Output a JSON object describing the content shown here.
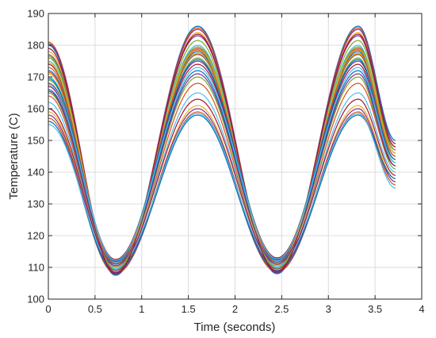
{
  "chart_data": {
    "type": "line",
    "xlabel": "Time (seconds)",
    "ylabel": "Temperature (C)",
    "xlim": [
      0,
      4
    ],
    "ylim": [
      100,
      190
    ],
    "xticks": [
      0,
      0.5,
      1,
      1.5,
      2,
      2.5,
      3,
      3.5,
      4
    ],
    "xtick_labels": [
      "0",
      "0.5",
      "1",
      "1.5",
      "2",
      "2.5",
      "3",
      "3.5",
      "4"
    ],
    "yticks": [
      100,
      110,
      120,
      130,
      140,
      150,
      160,
      170,
      180,
      190
    ],
    "ytick_labels": [
      "100",
      "110",
      "120",
      "130",
      "140",
      "150",
      "160",
      "170",
      "180",
      "190"
    ],
    "grid": true,
    "x_range": [
      0,
      3.72
    ],
    "troughs_x": [
      0.72,
      2.45
    ],
    "peaks_x": [
      1.6,
      3.32
    ],
    "series": [
      {
        "values": {
          "start": 180,
          "trough": 107.5,
          "peak": 186,
          "end": 150
        },
        "color": "#0072BD"
      },
      {
        "values": {
          "start": 181,
          "trough": 108,
          "peak": 185.5,
          "end": 149
        },
        "color": "#D95319"
      },
      {
        "values": {
          "start": 178,
          "trough": 108.5,
          "peak": 184,
          "end": 148
        },
        "color": "#EDB120"
      },
      {
        "values": {
          "start": 177,
          "trough": 109,
          "peak": 183,
          "end": 147
        },
        "color": "#7E2F8E"
      },
      {
        "values": {
          "start": 176,
          "trough": 109.5,
          "peak": 181.5,
          "end": 148
        },
        "color": "#77AC30"
      },
      {
        "values": {
          "start": 175,
          "trough": 110,
          "peak": 180,
          "end": 146
        },
        "color": "#4DBEEE"
      },
      {
        "values": {
          "start": 174,
          "trough": 110,
          "peak": 179,
          "end": 147
        },
        "color": "#A2142F"
      },
      {
        "values": {
          "start": 173,
          "trough": 110.5,
          "peak": 178.5,
          "end": 145
        },
        "color": "#D95319"
      },
      {
        "values": {
          "start": 172,
          "trough": 111,
          "peak": 178,
          "end": 146
        },
        "color": "#0072BD"
      },
      {
        "values": {
          "start": 171,
          "trough": 111,
          "peak": 177.5,
          "end": 144
        },
        "color": "#EDB120"
      },
      {
        "values": {
          "start": 170,
          "trough": 111.5,
          "peak": 177,
          "end": 145
        },
        "color": "#4DBEEE"
      },
      {
        "values": {
          "start": 169,
          "trough": 112,
          "peak": 176,
          "end": 143
        },
        "color": "#77AC30"
      },
      {
        "values": {
          "start": 168,
          "trough": 112,
          "peak": 175,
          "end": 144
        },
        "color": "#7E2F8E"
      },
      {
        "values": {
          "start": 167,
          "trough": 112.5,
          "peak": 174,
          "end": 142
        },
        "color": "#A2142F"
      },
      {
        "values": {
          "start": 166,
          "trough": 111,
          "peak": 172,
          "end": 143
        },
        "color": "#0072BD"
      },
      {
        "values": {
          "start": 165,
          "trough": 110,
          "peak": 170,
          "end": 141
        },
        "color": "#77AC30"
      },
      {
        "values": {
          "start": 164,
          "trough": 109,
          "peak": 168,
          "end": 142
        },
        "color": "#D95319"
      },
      {
        "values": {
          "start": 162,
          "trough": 109.5,
          "peak": 165,
          "end": 140
        },
        "color": "#4DBEEE"
      },
      {
        "values": {
          "start": 160,
          "trough": 110,
          "peak": 163,
          "end": 139
        },
        "color": "#A2142F"
      },
      {
        "values": {
          "start": 159,
          "trough": 108.5,
          "peak": 161,
          "end": 138
        },
        "color": "#EDB120"
      },
      {
        "values": {
          "start": 158,
          "trough": 109,
          "peak": 160,
          "end": 137
        },
        "color": "#7E2F8E"
      },
      {
        "values": {
          "start": 157,
          "trough": 108,
          "peak": 159,
          "end": 136
        },
        "color": "#D95319"
      },
      {
        "values": {
          "start": 156,
          "trough": 108.5,
          "peak": 158,
          "end": 138
        },
        "color": "#0072BD"
      },
      {
        "values": {
          "start": 155,
          "trough": 110,
          "peak": 158.5,
          "end": 135
        },
        "color": "#4DBEEE"
      },
      {
        "values": {
          "start": 180.5,
          "trough": 107.8,
          "peak": 185,
          "end": 149
        },
        "color": "#7E2F8E"
      },
      {
        "values": {
          "start": 179,
          "trough": 108.2,
          "peak": 183.5,
          "end": 148
        },
        "color": "#A2142F"
      },
      {
        "values": {
          "start": 176.5,
          "trough": 109.2,
          "peak": 179.5,
          "end": 147
        },
        "color": "#77AC30"
      },
      {
        "values": {
          "start": 174.5,
          "trough": 110.2,
          "peak": 178.8,
          "end": 146
        },
        "color": "#EDB120"
      },
      {
        "values": {
          "start": 171.5,
          "trough": 111.2,
          "peak": 177.2,
          "end": 145
        },
        "color": "#D95319"
      },
      {
        "values": {
          "start": 169.5,
          "trough": 111.8,
          "peak": 175.5,
          "end": 144
        },
        "color": "#0072BD"
      },
      {
        "values": {
          "start": 167.5,
          "trough": 112.2,
          "peak": 173,
          "end": 143
        },
        "color": "#4DBEEE"
      },
      {
        "values": {
          "start": 165.5,
          "trough": 110.5,
          "peak": 171,
          "end": 142
        },
        "color": "#7E2F8E"
      }
    ]
  }
}
